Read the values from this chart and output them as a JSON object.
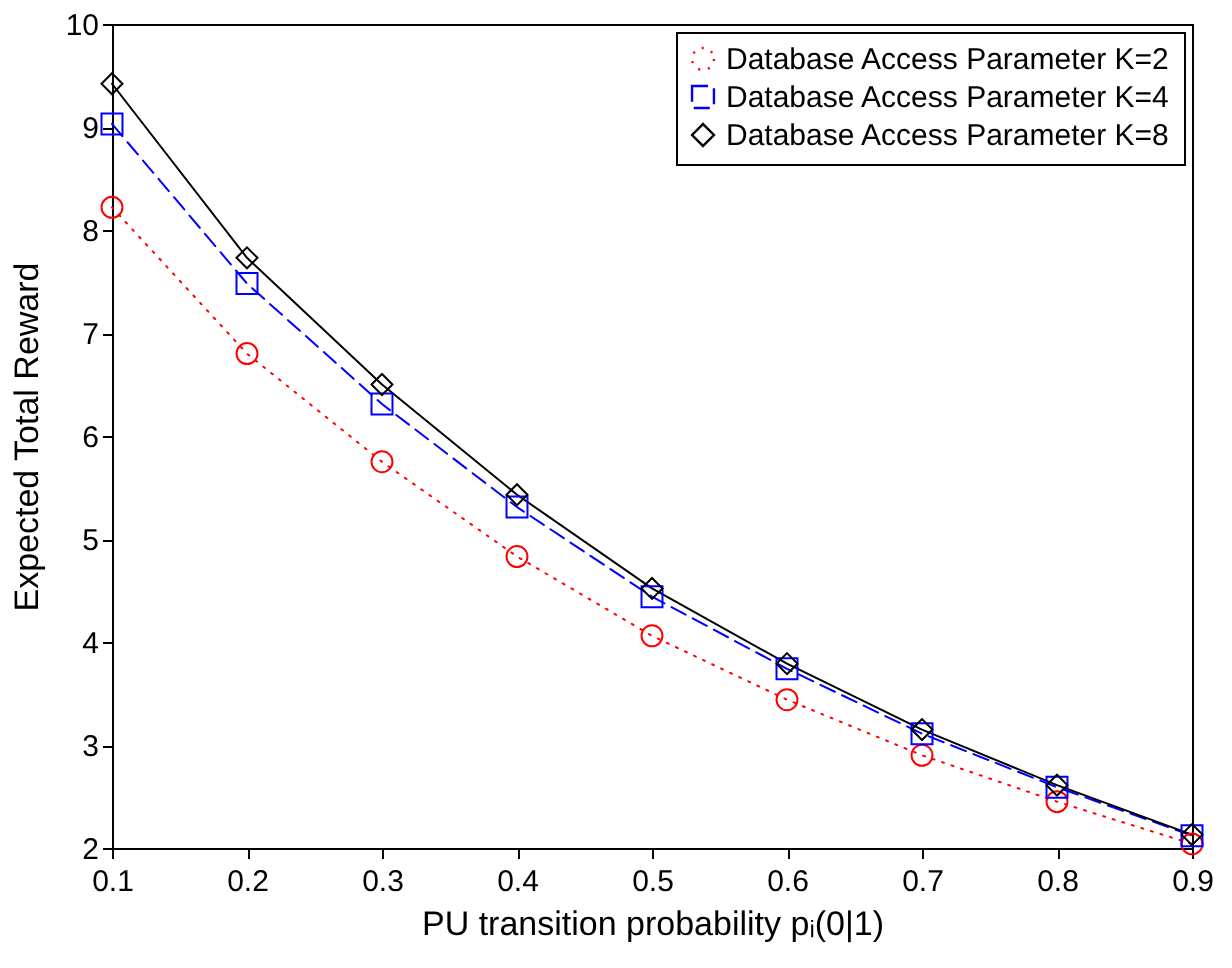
{
  "chart_data": {
    "type": "line",
    "xlabel": "PU transition probability pᵢ(0|1)",
    "ylabel": "Expected Total Reward",
    "x": [
      0.1,
      0.2,
      0.3,
      0.4,
      0.5,
      0.6,
      0.7,
      0.8,
      0.9
    ],
    "series": [
      {
        "name": "Database Access Parameter K=2",
        "color": "#ff0000",
        "marker": "circle",
        "line_style": "dotted",
        "values": [
          8.22,
          6.8,
          5.75,
          4.83,
          4.06,
          3.44,
          2.9,
          2.45,
          2.04
        ]
      },
      {
        "name": "Database Access Parameter K=4",
        "color": "#0000ff",
        "marker": "square",
        "line_style": "dashed",
        "values": [
          9.03,
          7.48,
          6.31,
          5.31,
          4.44,
          3.74,
          3.11,
          2.59,
          2.12
        ]
      },
      {
        "name": "Database Access Parameter K=8",
        "color": "#000000",
        "marker": "diamond",
        "line_style": "solid",
        "values": [
          9.42,
          7.73,
          6.5,
          5.43,
          4.52,
          3.79,
          3.15,
          2.61,
          2.13
        ]
      }
    ],
    "xlim": [
      0.1,
      0.9
    ],
    "xticks": [
      0.1,
      0.2,
      0.3,
      0.4,
      0.5,
      0.6,
      0.7,
      0.8,
      0.9
    ],
    "ylim": [
      2,
      10
    ],
    "yticks": [
      2,
      3,
      4,
      5,
      6,
      7,
      8,
      9,
      10
    ],
    "grid": false,
    "legend": "top right"
  }
}
